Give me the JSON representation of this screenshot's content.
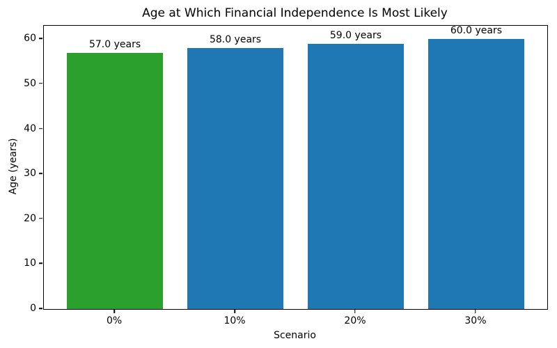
{
  "chart_data": {
    "type": "bar",
    "title": "Age at Which Financial Independence Is Most Likely",
    "xlabel": "Scenario",
    "ylabel": "Age (years)",
    "categories": [
      "0%",
      "10%",
      "20%",
      "30%"
    ],
    "values": [
      57.0,
      58.0,
      59.0,
      60.0
    ],
    "bar_labels": [
      "57.0 years",
      "58.0 years",
      "59.0 years",
      "60.0 years"
    ],
    "bar_colors": [
      "#2ca02c",
      "#1f77b4",
      "#1f77b4",
      "#1f77b4"
    ],
    "yticks": [
      0,
      10,
      20,
      30,
      40,
      50,
      60
    ],
    "ytick_labels": [
      "0",
      "10",
      "20",
      "30",
      "40",
      "50",
      "60"
    ],
    "ylim": [
      0,
      63
    ],
    "bar_width_units": 0.8,
    "grid": false,
    "legend": false,
    "colors": {
      "highlight": "#2ca02c",
      "default_bar": "#1f77b4",
      "text": "#000000",
      "background": "#ffffff"
    }
  }
}
